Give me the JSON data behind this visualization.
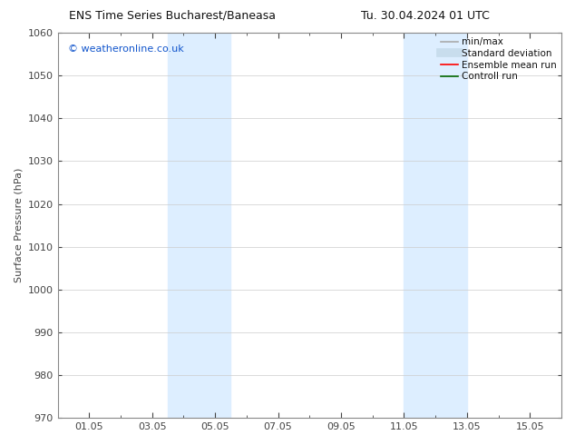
{
  "title_left": "ENS Time Series Bucharest/Baneasa",
  "title_right": "Tu. 30.04.2024 01 UTC",
  "ylabel": "Surface Pressure (hPa)",
  "ylim": [
    970,
    1060
  ],
  "yticks": [
    970,
    980,
    990,
    1000,
    1010,
    1020,
    1030,
    1040,
    1050,
    1060
  ],
  "xtick_labels": [
    "01.05",
    "03.05",
    "05.05",
    "07.05",
    "09.05",
    "11.05",
    "13.05",
    "15.05"
  ],
  "xtick_positions": [
    1,
    3,
    5,
    7,
    9,
    11,
    13,
    15
  ],
  "xminor_positions": [
    1,
    2,
    3,
    4,
    5,
    6,
    7,
    8,
    9,
    10,
    11,
    12,
    13,
    14,
    15
  ],
  "xlim": [
    0,
    16
  ],
  "shaded_bands": [
    {
      "x_start": 3.5,
      "x_end": 5.5
    },
    {
      "x_start": 11.0,
      "x_end": 13.0
    }
  ],
  "shaded_color": "#ddeeff",
  "watermark_text": "© weatheronline.co.uk",
  "watermark_color": "#1155cc",
  "legend_entries": [
    {
      "label": "min/max",
      "color": "#aaaaaa",
      "lw": 1.2,
      "style": "solid"
    },
    {
      "label": "Standard deviation",
      "color": "#c8dded",
      "lw": 7,
      "style": "solid"
    },
    {
      "label": "Ensemble mean run",
      "color": "#ff0000",
      "lw": 1.2,
      "style": "solid"
    },
    {
      "label": "Controll run",
      "color": "#006600",
      "lw": 1.2,
      "style": "solid"
    }
  ],
  "bg_color": "#ffffff",
  "grid_color": "#cccccc",
  "tick_color": "#444444",
  "font_size": 8,
  "title_fontsize": 9,
  "ylabel_fontsize": 8
}
